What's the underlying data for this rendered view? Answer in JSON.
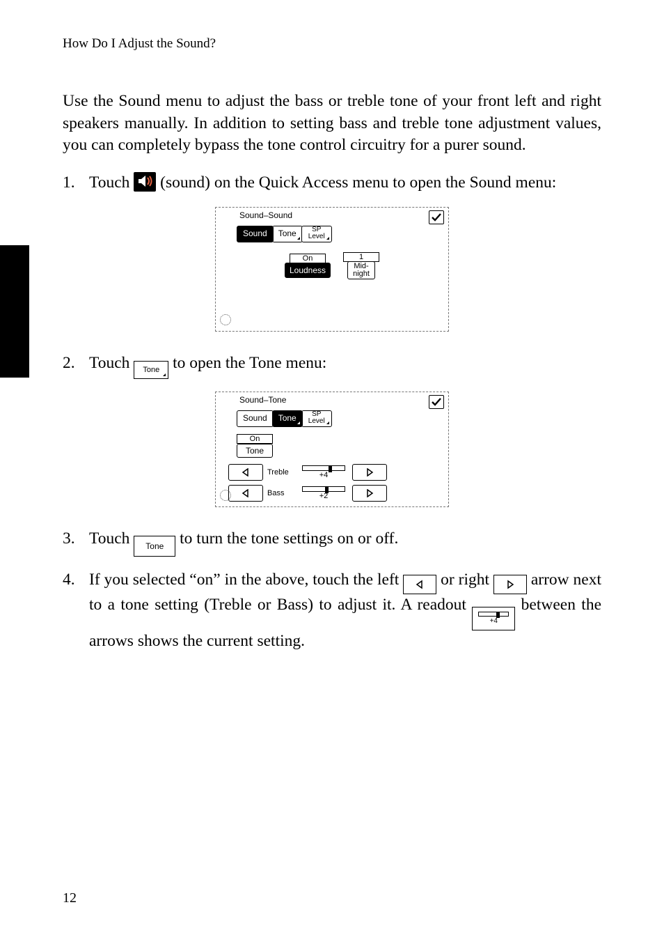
{
  "running_head": "How Do I Adjust the Sound?",
  "intro": "Use the Sound menu to adjust the bass or treble tone of your front left and right speakers manually. In addition to setting bass and treble tone adjustment values, you can completely bypass the tone control circuitry for a purer sound.",
  "steps": {
    "s1a": "Touch ",
    "s1b": " (sound) on the Quick Access menu to open the Sound menu:",
    "s2a": "Touch ",
    "s2b": " to open the Tone menu:",
    "s3a": "Touch ",
    "s3b": " to turn the tone settings on or off.",
    "s4a": "If you selected “on” in the above, touch the left ",
    "s4b": " or right ",
    "s4c": " arrow next to a tone setting (Treble or Bass) to adjust it. A readout ",
    "s4d": " between the arrows shows the current setting."
  },
  "tone_label": "Tone",
  "readout_value": "+4",
  "fig1": {
    "title": "Sound–Sound",
    "tabs": {
      "sound": "Sound",
      "tone": "Tone",
      "sp1": "SP",
      "sp2": "Level"
    },
    "row1": {
      "status": "On",
      "count": "1"
    },
    "row2": {
      "loudness": "Loudness",
      "mid1": "Mid-",
      "mid2": "night"
    }
  },
  "fig2": {
    "title": "Sound–Tone",
    "tabs": {
      "sound": "Sound",
      "tone": "Tone",
      "sp1": "SP",
      "sp2": "Level"
    },
    "on": "On",
    "tone_btn": "Tone",
    "treble": {
      "label": "Treble",
      "value": "+4",
      "knob_pct": 62
    },
    "bass": {
      "label": "Bass",
      "value": "+2",
      "knob_pct": 53
    }
  },
  "page_number": "12"
}
